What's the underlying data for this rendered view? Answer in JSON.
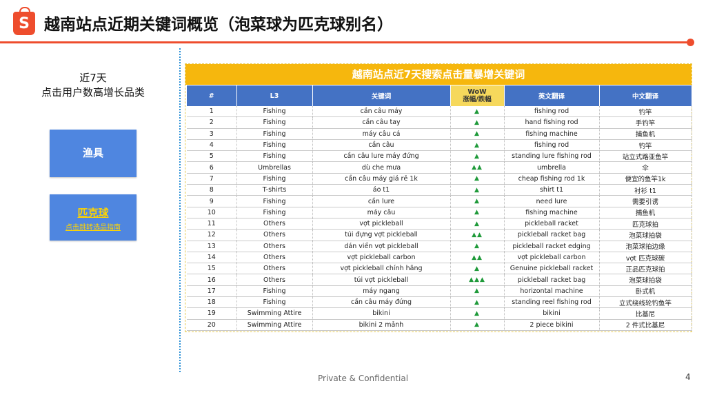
{
  "header": {
    "logo_letter": "S",
    "title": "越南站点近期关键词概览（泡菜球为匹克球别名）"
  },
  "left": {
    "title_line1": "近7天",
    "title_line2": "点击用户数高增长品类",
    "category1": "渔具",
    "category2_main": "匹克球",
    "category2_sub": "点击跳转选品指南"
  },
  "table": {
    "title": "越南站点近7天搜索点击量暴增关键词",
    "headers": {
      "num": "#",
      "l3": "L3",
      "keyword": "关键词",
      "wow_line1": "WoW",
      "wow_line2": "涨幅/跌幅",
      "en": "英文翻译",
      "zh": "中文翻译"
    },
    "rows": [
      {
        "num": "1",
        "l3": "Fishing",
        "keyword": "cần câu máy",
        "wow": "▲",
        "en": "fishing rod",
        "zh": "钓竿"
      },
      {
        "num": "2",
        "l3": "Fishing",
        "keyword": "cần câu tay",
        "wow": "▲",
        "en": "hand fishing rod",
        "zh": "手钓竿"
      },
      {
        "num": "3",
        "l3": "Fishing",
        "keyword": "máy câu cá",
        "wow": "▲",
        "en": "fishing machine",
        "zh": "捕鱼机"
      },
      {
        "num": "4",
        "l3": "Fishing",
        "keyword": "cần câu",
        "wow": "▲",
        "en": "fishing rod",
        "zh": "钓竿"
      },
      {
        "num": "5",
        "l3": "Fishing",
        "keyword": "cần câu lure máy đứng",
        "wow": "▲",
        "en": "standing lure fishing rod",
        "zh": "站立式路亚鱼竿"
      },
      {
        "num": "6",
        "l3": "Umbrellas",
        "keyword": "dù che mưa",
        "wow": "▲▲",
        "en": "umbrella",
        "zh": "伞"
      },
      {
        "num": "7",
        "l3": "Fishing",
        "keyword": "cần câu máy giá rẻ 1k",
        "wow": "▲",
        "en": "cheap fishing rod 1k",
        "zh": "便宜的鱼竿1k"
      },
      {
        "num": "8",
        "l3": "T-shirts",
        "keyword": "áo t1",
        "wow": "▲",
        "en": "shirt t1",
        "zh": "衬衫 t1"
      },
      {
        "num": "9",
        "l3": "Fishing",
        "keyword": "cần lure",
        "wow": "▲",
        "en": "need lure",
        "zh": "需要引诱"
      },
      {
        "num": "10",
        "l3": "Fishing",
        "keyword": "máy câu",
        "wow": "▲",
        "en": "fishing machine",
        "zh": "捕鱼机"
      },
      {
        "num": "11",
        "l3": "Others",
        "keyword": "vợt pickleball",
        "wow": "▲",
        "en": "pickleball racket",
        "zh": "匹克球拍"
      },
      {
        "num": "12",
        "l3": "Others",
        "keyword": "túi đựng vợt pickleball",
        "wow": "▲▲",
        "en": "pickleball racket bag",
        "zh": "泡菜球拍袋"
      },
      {
        "num": "13",
        "l3": "Others",
        "keyword": "dán viền vợt pickleball",
        "wow": "▲",
        "en": "pickleball racket edging",
        "zh": "泡菜球拍边缘"
      },
      {
        "num": "14",
        "l3": "Others",
        "keyword": "vợt pickleball carbon",
        "wow": "▲▲",
        "en": "vợt pickleball carbon",
        "zh": "vợt 匹克球碳"
      },
      {
        "num": "15",
        "l3": "Others",
        "keyword": "vợt pickleball chính hãng",
        "wow": "▲",
        "en": "Genuine pickleball racket",
        "zh": "正品匹克球拍"
      },
      {
        "num": "16",
        "l3": "Others",
        "keyword": "túi vợt pickleball",
        "wow": "▲▲▲",
        "en": "pickleball racket bag",
        "zh": "泡菜球拍袋"
      },
      {
        "num": "17",
        "l3": "Fishing",
        "keyword": "máy ngang",
        "wow": "▲",
        "en": "horizontal machine",
        "zh": "卧式机"
      },
      {
        "num": "18",
        "l3": "Fishing",
        "keyword": "cần câu máy đứng",
        "wow": "▲",
        "en": "standing reel fishing rod",
        "zh": "立式绕线轮钓鱼竿"
      },
      {
        "num": "19",
        "l3": "Swimming Attire",
        "keyword": "bikini",
        "wow": "▲",
        "en": "bikini",
        "zh": "比基尼"
      },
      {
        "num": "20",
        "l3": "Swimming Attire",
        "keyword": "bikini 2 mảnh",
        "wow": "▲",
        "en": "2 piece bikini",
        "zh": "2 件式比基尼"
      }
    ]
  },
  "footer": {
    "confidential": "Private & Confidential",
    "page": "4"
  },
  "colors": {
    "brand": "#ee4d2d",
    "table_title": "#f6b70d",
    "table_header": "#4472c4",
    "wow_header": "#f6d85c",
    "category_box": "#4f86e0",
    "link_text": "#ffd400",
    "arrow_up": "#1f9a3a"
  }
}
